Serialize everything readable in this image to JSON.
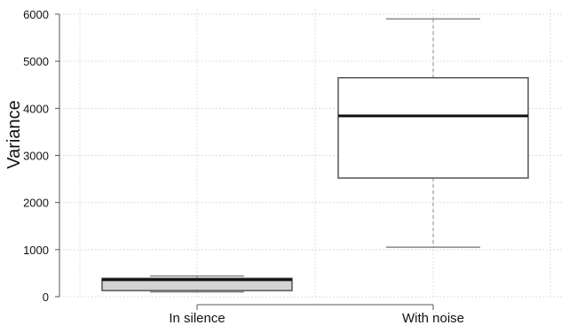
{
  "chart_data": {
    "type": "box",
    "title": "",
    "xlabel": "",
    "ylabel": "Variance",
    "ylim": [
      0,
      6000
    ],
    "yticks": [
      0,
      1000,
      2000,
      3000,
      4000,
      5000,
      6000
    ],
    "grid": true,
    "categories": [
      "In silence",
      "With noise"
    ],
    "boxes": [
      {
        "label": "In silence",
        "whisker_low": 100,
        "q1": 130,
        "median": 360,
        "q3": 390,
        "whisker_high": 440,
        "fill": "#d3d3d3"
      },
      {
        "label": "With noise",
        "whisker_low": 1050,
        "q1": 2520,
        "median": 3840,
        "q3": 4650,
        "whisker_high": 5900,
        "fill": "#ffffff"
      }
    ],
    "colors": {
      "grid": "#dcdcdc",
      "axis": "#555555",
      "box_outline": "#555555",
      "median": "#111111",
      "whisker": "#888888"
    }
  }
}
